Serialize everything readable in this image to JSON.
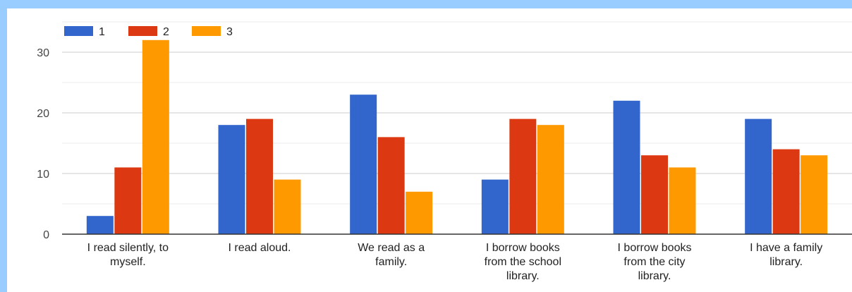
{
  "chart_data": {
    "type": "bar",
    "title": "",
    "xlabel": "",
    "ylabel": "",
    "ylim": [
      0,
      32
    ],
    "y_ticks": [
      0,
      10,
      20,
      30
    ],
    "grid": true,
    "legend_position": "top-left",
    "categories": [
      [
        "I read silently, to",
        "myself."
      ],
      [
        "I read aloud."
      ],
      [
        "We read as a",
        "family."
      ],
      [
        "I borrow books",
        "from the school",
        "library."
      ],
      [
        "I borrow books",
        "from the city",
        "library."
      ],
      [
        "I have a family",
        "library."
      ]
    ],
    "series": [
      {
        "name": "1",
        "color": "#3366cc",
        "values": [
          3,
          18,
          23,
          9,
          22,
          19
        ]
      },
      {
        "name": "2",
        "color": "#dc3912",
        "values": [
          11,
          19,
          16,
          19,
          13,
          14
        ]
      },
      {
        "name": "3",
        "color": "#ff9900",
        "values": [
          32,
          9,
          7,
          18,
          11,
          13
        ]
      }
    ]
  }
}
